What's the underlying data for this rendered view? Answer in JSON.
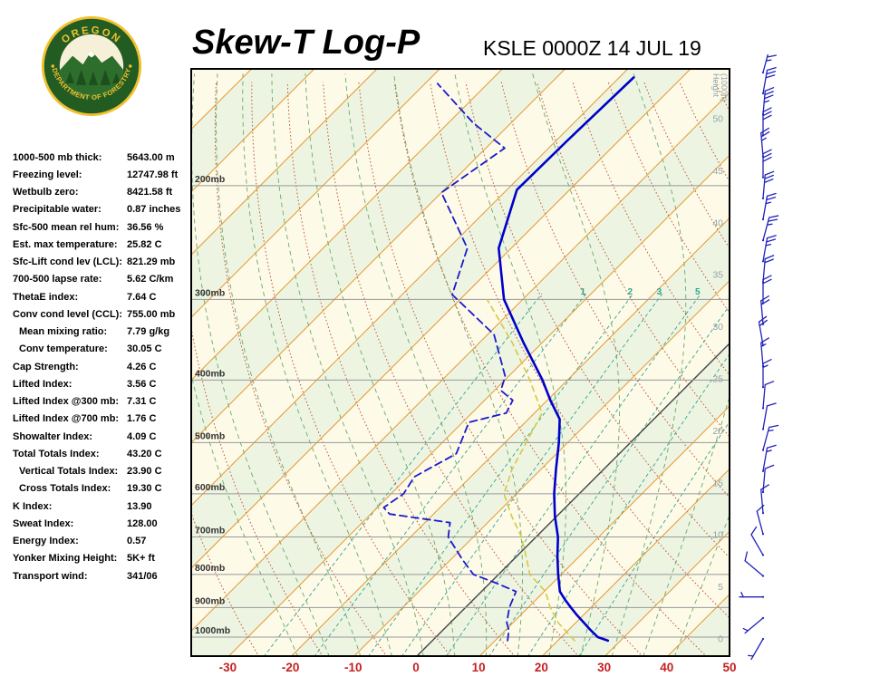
{
  "header": {
    "title": "Skew-T Log-P",
    "station": "KSLE 0000Z 14 JUL 19",
    "logo": {
      "top": "OREGON",
      "bottom": "DEPARTMENT OF FORESTRY"
    }
  },
  "indices": [
    {
      "label": "1000-500 mb thick:",
      "value": "5643.00 m"
    },
    {
      "label": "Freezing level:",
      "value": "12747.98 ft"
    },
    {
      "label": "Wetbulb zero:",
      "value": "8421.58 ft"
    },
    {
      "label": "Precipitable water:",
      "value": "0.87 inches"
    },
    {
      "label": "Sfc-500 mean rel hum:",
      "value": "36.56 %"
    },
    {
      "label": "Est. max temperature:",
      "value": "25.82 C"
    },
    {
      "label": "Sfc-Lift cond lev (LCL):",
      "value": "821.29 mb"
    },
    {
      "label": "700-500 lapse rate:",
      "value": "5.62 C/km"
    },
    {
      "label": "ThetaE index:",
      "value": "7.64 C"
    },
    {
      "label": "Conv cond level (CCL):",
      "value": "755.00 mb"
    },
    {
      "label": "Mean mixing ratio:",
      "value": "7.79 g/kg",
      "indent": true
    },
    {
      "label": "Conv temperature:",
      "value": "30.05 C",
      "indent": true
    },
    {
      "label": "Cap Strength:",
      "value": "4.26 C"
    },
    {
      "label": "Lifted Index:",
      "value": "3.56 C"
    },
    {
      "label": "Lifted Index @300 mb:",
      "value": "7.31 C"
    },
    {
      "label": "Lifted Index @700 mb:",
      "value": "1.76 C"
    },
    {
      "label": "Showalter Index:",
      "value": "4.09 C"
    },
    {
      "label": "Total Totals Index:",
      "value": "43.20 C"
    },
    {
      "label": "Vertical Totals Index:",
      "value": "23.90 C",
      "indent": true
    },
    {
      "label": "Cross Totals Index:",
      "value": "19.30 C",
      "indent": true
    },
    {
      "label": "K Index:",
      "value": "13.90"
    },
    {
      "label": "Sweat Index:",
      "value": "128.00"
    },
    {
      "label": "Energy Index:",
      "value": "0.57"
    },
    {
      "label": "Yonker Mixing Height:",
      "value": "5K+ ft"
    },
    {
      "label": "Transport wind:",
      "value": "341/06"
    }
  ],
  "chart_data": {
    "type": "line",
    "title": "Skew-T Log-P",
    "station_id": "KSLE",
    "valid_time": "0000Z 14 JUL 19",
    "pressure_labels": [
      "200mb",
      "300mb",
      "400mb",
      "500mb",
      "600mb",
      "700mb",
      "800mb",
      "900mb",
      "1000mb"
    ],
    "pressure_levels_mb": [
      200,
      300,
      400,
      500,
      600,
      700,
      800,
      900,
      1000
    ],
    "temp_axis_c": [
      -30,
      -20,
      -10,
      0,
      10,
      20,
      30,
      40,
      50
    ],
    "height_labels_kft": [
      0,
      5,
      10,
      15,
      20,
      25,
      30,
      35,
      40,
      45,
      50
    ],
    "height_axis_title": "Height (1000ft)",
    "isotherms": {
      "min": -120,
      "max": 50,
      "step": 10
    },
    "dry_adiabats": {
      "min": -30,
      "max": 160,
      "step": 10
    },
    "moist_adiabats": {
      "min": -20,
      "max": 40,
      "step": 5
    },
    "mixing_ratio_lines": [
      0.5,
      1,
      2,
      3,
      5,
      8,
      12,
      20
    ],
    "mixing_ratio_label_values": [
      1,
      2,
      3,
      5
    ],
    "sounding": {
      "temperature": [
        [
          1013,
          28
        ],
        [
          1000,
          25.8
        ],
        [
          975,
          23.5
        ],
        [
          950,
          21.3
        ],
        [
          925,
          19
        ],
        [
          900,
          16.8
        ],
        [
          875,
          14.6
        ],
        [
          850,
          12.5
        ],
        [
          800,
          9.5
        ],
        [
          750,
          6.5
        ],
        [
          700,
          3.5
        ],
        [
          650,
          -0.3
        ],
        [
          600,
          -4
        ],
        [
          550,
          -7.6
        ],
        [
          500,
          -11.4
        ],
        [
          460,
          -15
        ],
        [
          430,
          -19.5
        ],
        [
          400,
          -24
        ],
        [
          350,
          -33
        ],
        [
          300,
          -43
        ],
        [
          250,
          -52
        ],
        [
          203,
          -58.4
        ],
        [
          170,
          -58.2
        ],
        [
          136,
          -57.7
        ]
      ],
      "dewpoint": [
        [
          1013,
          12
        ],
        [
          975,
          10.5
        ],
        [
          950,
          9
        ],
        [
          900,
          7
        ],
        [
          850,
          5.5
        ],
        [
          825,
          1
        ],
        [
          800,
          -4
        ],
        [
          760,
          -8
        ],
        [
          700,
          -14
        ],
        [
          665,
          -16
        ],
        [
          645,
          -27
        ],
        [
          630,
          -29
        ],
        [
          600,
          -28
        ],
        [
          565,
          -29
        ],
        [
          520,
          -26
        ],
        [
          465,
          -29
        ],
        [
          450,
          -24.5
        ],
        [
          430,
          -25.5
        ],
        [
          415,
          -29
        ],
        [
          395,
          -30.5
        ],
        [
          340,
          -39
        ],
        [
          295,
          -52
        ],
        [
          250,
          -57
        ],
        [
          205,
          -70
        ],
        [
          175,
          -67
        ],
        [
          160,
          -76
        ],
        [
          139,
          -88
        ]
      ],
      "wetbulb": [
        [
          1013,
          22.7
        ],
        [
          950,
          17.2
        ],
        [
          900,
          13.5
        ],
        [
          850,
          10.2
        ],
        [
          800,
          5
        ],
        [
          750,
          1.5
        ],
        [
          700,
          -2.3
        ],
        [
          650,
          -7.2
        ],
        [
          600,
          -12
        ],
        [
          550,
          -14.6
        ],
        [
          500,
          -16.6
        ],
        [
          450,
          -18.8
        ],
        [
          400,
          -26
        ],
        [
          350,
          -34.8
        ],
        [
          300,
          -45.7
        ]
      ]
    },
    "winds": [
      {
        "dir": 210,
        "spd": 5
      },
      {
        "dir": 230,
        "spd": 5
      },
      {
        "dir": 270,
        "spd": 5
      },
      {
        "dir": 310,
        "spd": 8
      },
      {
        "dir": 330,
        "spd": 10
      },
      {
        "dir": 345,
        "spd": 10
      },
      {
        "dir": 355,
        "spd": 10
      },
      {
        "dir": 5,
        "spd": 12
      },
      {
        "dir": 10,
        "spd": 15
      },
      {
        "dir": 15,
        "spd": 15
      },
      {
        "dir": 10,
        "spd": 10
      },
      {
        "dir": 5,
        "spd": 10
      },
      {
        "dir": 0,
        "spd": 15
      },
      {
        "dir": 355,
        "spd": 15
      },
      {
        "dir": 350,
        "spd": 20
      },
      {
        "dir": 355,
        "spd": 20
      },
      {
        "dir": 0,
        "spd": 20
      },
      {
        "dir": 5,
        "spd": 20
      },
      {
        "dir": 10,
        "spd": 25
      },
      {
        "dir": 15,
        "spd": 25
      },
      {
        "dir": 10,
        "spd": 25
      },
      {
        "dir": 5,
        "spd": 30
      },
      {
        "dir": 0,
        "spd": 30
      },
      {
        "dir": 355,
        "spd": 25
      },
      {
        "dir": 0,
        "spd": 30
      },
      {
        "dir": 5,
        "spd": 35
      },
      {
        "dir": 10,
        "spd": 30
      },
      {
        "dir": 15,
        "spd": 35
      }
    ],
    "colors": {
      "stripe_a": "#fdfae8",
      "stripe_b": "#edf5e2",
      "isotherm": "#e5962e",
      "isotherm_zero": "#444444",
      "dry_adiabat": "#c05b3c",
      "moist_adiabat": "#6aa86a",
      "mixing_ratio": "#2fa58d",
      "pressure_line": "#999999",
      "pressure_label": "#333333",
      "temperature": "#0000cc",
      "dewpoint": "#1a1acc",
      "wetbulb": "#d8c83f",
      "height_label": "#94a4aa",
      "axis_label": "#c42020",
      "wind_barb": "#2222bb",
      "frame": "#000000",
      "logo_green": "#235c23",
      "logo_gold": "#f2c12e"
    }
  }
}
